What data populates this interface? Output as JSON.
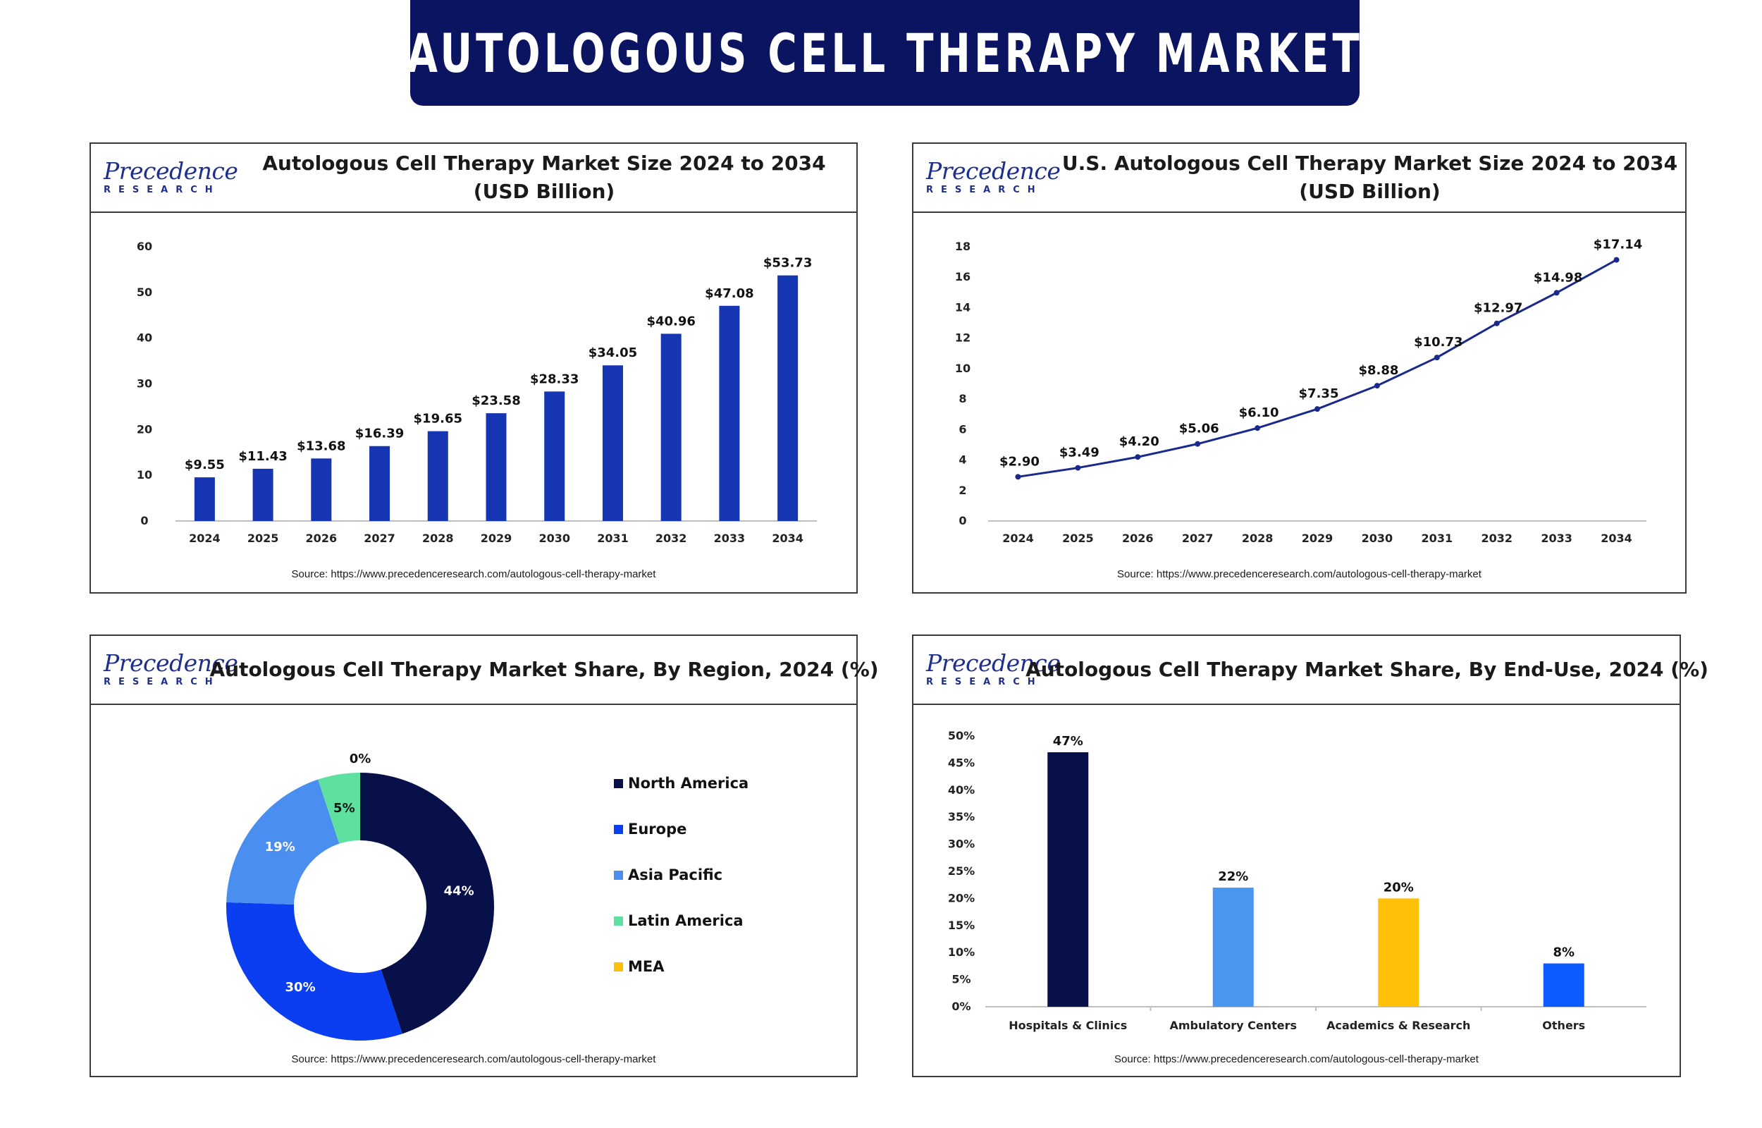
{
  "page_title": "AUTOLOGOUS CELL THERAPY MARKET",
  "logo": {
    "word": "Precedence",
    "sub": "RESEARCH"
  },
  "colors": {
    "banner": "#0b1460",
    "bar_blue": "#1535b3",
    "line_blue": "#1a2a8c",
    "north_america": "#08104a",
    "europe": "#0a3ef0",
    "asia_pacific": "#4a8ff0",
    "latin_america": "#5ee0a0",
    "mea": "#ffc107",
    "others": "#0a5cff"
  },
  "source_text": "Source: https://www.precedenceresearch.com/autologous-cell-therapy-market",
  "panels": {
    "global": {
      "title_line1": "Autologous Cell Therapy Market Size 2024 to 2034",
      "title_line2": "(USD Billion)"
    },
    "us": {
      "title_line1": "U.S. Autologous Cell Therapy Market Size 2024 to 2034",
      "title_line2": "(USD Billion)"
    },
    "region": {
      "title_line1": "Autologous Cell Therapy Market Share, By Region, 2024 (%)"
    },
    "enduse": {
      "title_line1": "Autologous Cell Therapy Market Share, By End-Use, 2024 (%)"
    }
  },
  "chart_data": [
    {
      "id": "global",
      "type": "bar",
      "title": "Autologous Cell Therapy Market Size 2024 to 2034 (USD Billion)",
      "categories": [
        "2024",
        "2025",
        "2026",
        "2027",
        "2028",
        "2029",
        "2030",
        "2031",
        "2032",
        "2033",
        "2034"
      ],
      "values": [
        9.55,
        11.43,
        13.68,
        16.39,
        19.65,
        23.58,
        28.33,
        34.05,
        40.96,
        47.08,
        53.73
      ],
      "data_labels": [
        "$9.55",
        "$11.43",
        "$13.68",
        "$16.39",
        "$19.65",
        "$23.58",
        "$28.33",
        "$34.05",
        "$40.96",
        "$47.08",
        "$53.73"
      ],
      "yticks": [
        "0",
        "10",
        "20",
        "30",
        "40",
        "50",
        "60"
      ],
      "ylim": [
        0,
        60
      ],
      "grid": false,
      "color": "#1535b3"
    },
    {
      "id": "us",
      "type": "line",
      "title": "U.S. Autologous Cell Therapy Market Size 2024 to 2034 (USD Billion)",
      "categories": [
        "2024",
        "2025",
        "2026",
        "2027",
        "2028",
        "2029",
        "2030",
        "2031",
        "2032",
        "2033",
        "2034"
      ],
      "values": [
        2.9,
        3.49,
        4.2,
        5.06,
        6.1,
        7.35,
        8.88,
        10.73,
        12.97,
        14.98,
        17.14
      ],
      "data_labels": [
        "$2.90",
        "$3.49",
        "$4.20",
        "$5.06",
        "$6.10",
        "$7.35",
        "$8.88",
        "$10.73",
        "$12.97",
        "$14.98",
        "$17.14"
      ],
      "yticks": [
        "0",
        "2",
        "4",
        "6",
        "8",
        "10",
        "12",
        "14",
        "16",
        "18"
      ],
      "ylim": [
        0,
        18
      ],
      "grid": false,
      "color": "#1a2a8c"
    },
    {
      "id": "region",
      "type": "pie",
      "title": "Autologous Cell Therapy Market Share, By Region, 2024 (%)",
      "donut": true,
      "legend_position": "right",
      "slices": [
        {
          "name": "North America",
          "value": 44,
          "label": "44%",
          "color": "#08104a"
        },
        {
          "name": "Europe",
          "value": 30,
          "label": "30%",
          "color": "#0a3ef0"
        },
        {
          "name": "Asia Pacific",
          "value": 19,
          "label": "19%",
          "color": "#4a8ff0"
        },
        {
          "name": "Latin America",
          "value": 5,
          "label": "5%",
          "color": "#5ee0a0"
        },
        {
          "name": "MEA",
          "value": 0,
          "label": "0%",
          "color": "#ffc107"
        }
      ]
    },
    {
      "id": "enduse",
      "type": "bar",
      "title": "Autologous Cell Therapy Market Share, By End-Use, 2024 (%)",
      "categories": [
        "Hospitals & Clinics",
        "Ambulatory Centers",
        "Academics & Research",
        "Others"
      ],
      "values": [
        47,
        22,
        20,
        8
      ],
      "data_labels": [
        "47%",
        "22%",
        "20%",
        "8%"
      ],
      "colors": [
        "#08104a",
        "#4a96f0",
        "#ffc107",
        "#0a5cff"
      ],
      "yticks": [
        "0%",
        "5%",
        "10%",
        "15%",
        "20%",
        "25%",
        "30%",
        "35%",
        "40%",
        "45%",
        "50%"
      ],
      "ylim": [
        0,
        50
      ],
      "grid": false
    }
  ]
}
